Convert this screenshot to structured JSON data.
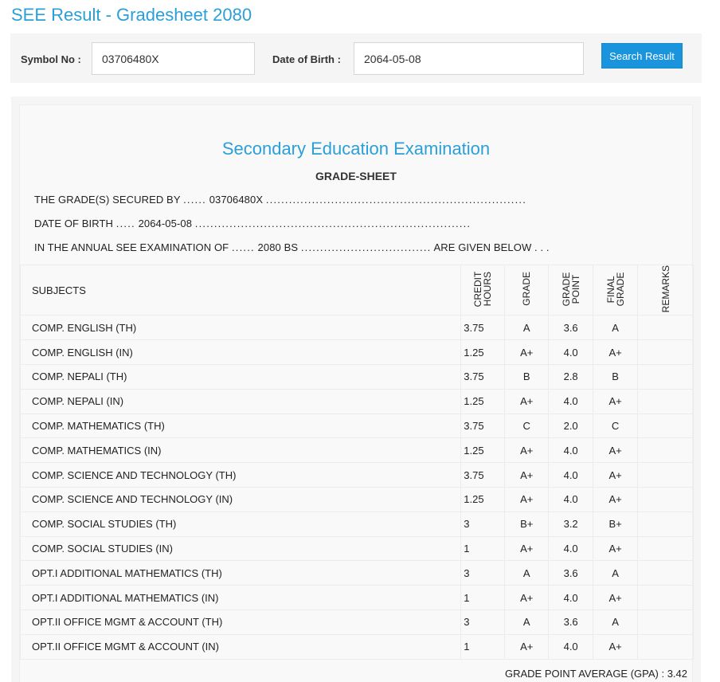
{
  "page": {
    "title": "SEE Result - Gradesheet 2080"
  },
  "search": {
    "symbol_label": "Symbol No :",
    "symbol_value": "03706480X",
    "dob_label": "Date of Birth :",
    "dob_value": "2064-05-08",
    "button_label": "Search Result"
  },
  "sheet": {
    "exam_title": "Secondary Education Examination",
    "subtitle": "GRADE-SHEET",
    "line1_prefix": "THE GRADE(S) SECURED BY",
    "line1_dots_a": "......",
    "line1_value": "03706480X",
    "line1_dots_b": "....................................................................",
    "line2_prefix": "DATE OF BIRTH",
    "line2_dots_a": ".....",
    "line2_value": "2064-05-08",
    "line2_dots_b": "........................................................................",
    "line3_prefix": "IN THE ANNUAL SEE EXAMINATION OF",
    "line3_dots_a": "......",
    "line3_value": "2080 BS",
    "line3_dots_b": "..................................",
    "line3_suffix": "ARE GIVEN BELOW . . .",
    "headers": {
      "subjects": "SUBJECTS",
      "credit_hours": "CREDIT HOURS",
      "grade": "GRADE",
      "grade_point": "GRADE POINT",
      "final_grade": "FINAL GRADE",
      "remarks": "REMARKS"
    },
    "rows": [
      {
        "subject": "COMP. ENGLISH (TH)",
        "credit": "3.75",
        "grade": "A",
        "point": "3.6",
        "final": "A"
      },
      {
        "subject": "COMP. ENGLISH (IN)",
        "credit": "1.25",
        "grade": "A+",
        "point": "4.0",
        "final": "A+"
      },
      {
        "subject": "COMP. NEPALI (TH)",
        "credit": "3.75",
        "grade": "B",
        "point": "2.8",
        "final": "B"
      },
      {
        "subject": "COMP. NEPALI (IN)",
        "credit": "1.25",
        "grade": "A+",
        "point": "4.0",
        "final": "A+"
      },
      {
        "subject": "COMP. MATHEMATICS (TH)",
        "credit": "3.75",
        "grade": "C",
        "point": "2.0",
        "final": "C"
      },
      {
        "subject": "COMP. MATHEMATICS (IN)",
        "credit": "1.25",
        "grade": "A+",
        "point": "4.0",
        "final": "A+"
      },
      {
        "subject": "COMP. SCIENCE AND TECHNOLOGY (TH)",
        "credit": "3.75",
        "grade": "A+",
        "point": "4.0",
        "final": "A+"
      },
      {
        "subject": "COMP. SCIENCE AND TECHNOLOGY (IN)",
        "credit": "1.25",
        "grade": "A+",
        "point": "4.0",
        "final": "A+"
      },
      {
        "subject": "COMP. SOCIAL STUDIES (TH)",
        "credit": "3",
        "grade": "B+",
        "point": "3.2",
        "final": "B+"
      },
      {
        "subject": "COMP. SOCIAL STUDIES (IN)",
        "credit": "1",
        "grade": "A+",
        "point": "4.0",
        "final": "A+"
      },
      {
        "subject": "OPT.I ADDITIONAL MATHEMATICS (TH)",
        "credit": "3",
        "grade": "A",
        "point": "3.6",
        "final": "A"
      },
      {
        "subject": "OPT.I ADDITIONAL MATHEMATICS (IN)",
        "credit": "1",
        "grade": "A+",
        "point": "4.0",
        "final": "A+"
      },
      {
        "subject": "OPT.II OFFICE MGMT & ACCOUNT (TH)",
        "credit": "3",
        "grade": "A",
        "point": "3.6",
        "final": "A"
      },
      {
        "subject": "OPT.II OFFICE MGMT & ACCOUNT (IN)",
        "credit": "1",
        "grade": "A+",
        "point": "4.0",
        "final": "A+"
      }
    ],
    "gpa_text": "GRADE POINT AVERAGE (GPA) : 3.42"
  },
  "colors": {
    "accent": "#2a9fd8",
    "button": "#1a95dd"
  }
}
